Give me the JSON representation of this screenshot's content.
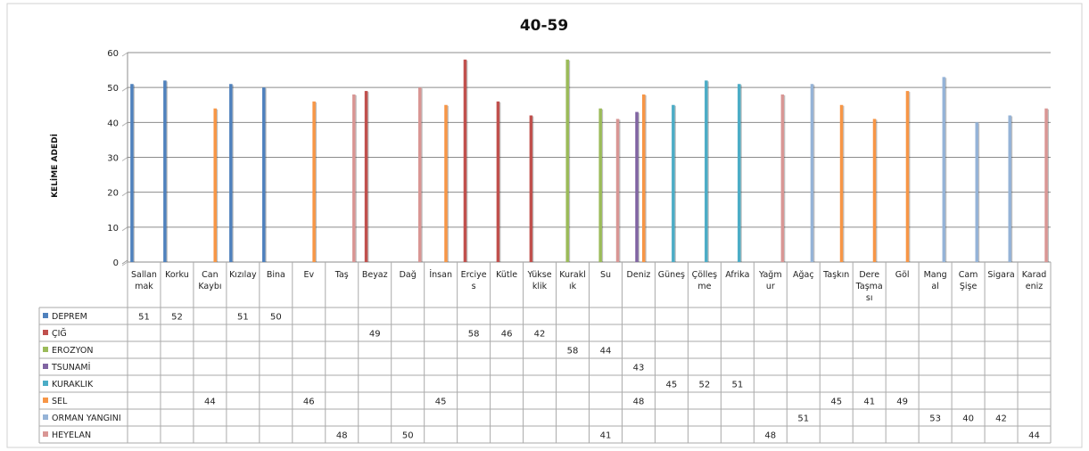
{
  "chart_data": {
    "type": "bar",
    "title": "40-59",
    "ylabel": "KELİME ADEDİ",
    "xlabel": "",
    "ylim": [
      0,
      60
    ],
    "yticks": [
      0,
      10,
      20,
      30,
      40,
      50,
      60
    ],
    "grid": true,
    "legend": "data-table",
    "categories": [
      "Sallan mak",
      "Korku",
      "Can Kaybı",
      "Kızılay",
      "Bina",
      "Ev",
      "Taş",
      "Beyaz",
      "Dağ",
      "İnsan",
      "Erciye s",
      "Kütle",
      "Yükse klik",
      "Kurakl ık",
      "Su",
      "Deniz",
      "Güneş",
      "Çölleş me",
      "Afrika",
      "Yağm ur",
      "Ağaç",
      "Taşkın",
      "Dere Taşma sı",
      "Göl",
      "Mang al",
      "Cam Şişe",
      "Sigara",
      "Karad eniz"
    ],
    "category_lines": [
      [
        "Sallan",
        "mak"
      ],
      [
        "Korku"
      ],
      [
        "Can",
        "Kaybı"
      ],
      [
        "Kızılay"
      ],
      [
        "Bina"
      ],
      [
        "Ev"
      ],
      [
        "Taş"
      ],
      [
        "Beyaz"
      ],
      [
        "Dağ"
      ],
      [
        "İnsan"
      ],
      [
        "Erciye",
        "s"
      ],
      [
        "Kütle"
      ],
      [
        "Yükse",
        "klik"
      ],
      [
        "Kurakl",
        "ık"
      ],
      [
        "Su"
      ],
      [
        "Deniz"
      ],
      [
        "Güneş"
      ],
      [
        "Çölleş",
        "me"
      ],
      [
        "Afrika"
      ],
      [
        "Yağm",
        "ur"
      ],
      [
        "Ağaç"
      ],
      [
        "Taşkın"
      ],
      [
        "Dere",
        "Taşma",
        "sı"
      ],
      [
        "Göl"
      ],
      [
        "Mang",
        "al"
      ],
      [
        "Cam",
        "Şişe"
      ],
      [
        "Sigara"
      ],
      [
        "Karad",
        "eniz"
      ]
    ],
    "series": [
      {
        "name": "DEPREM",
        "color": "#4f81bd",
        "values": [
          51,
          52,
          null,
          51,
          50,
          null,
          null,
          null,
          null,
          null,
          null,
          null,
          null,
          null,
          null,
          null,
          null,
          null,
          null,
          null,
          null,
          null,
          null,
          null,
          null,
          null,
          null,
          null
        ]
      },
      {
        "name": "ÇIĞ",
        "color": "#c0504d",
        "values": [
          null,
          null,
          null,
          null,
          null,
          null,
          null,
          49,
          null,
          null,
          58,
          46,
          42,
          null,
          null,
          null,
          null,
          null,
          null,
          null,
          null,
          null,
          null,
          null,
          null,
          null,
          null,
          null
        ]
      },
      {
        "name": "EROZYON",
        "color": "#9bbb59",
        "values": [
          null,
          null,
          null,
          null,
          null,
          null,
          null,
          null,
          null,
          null,
          null,
          null,
          null,
          58,
          44,
          null,
          null,
          null,
          null,
          null,
          null,
          null,
          null,
          null,
          null,
          null,
          null,
          null
        ]
      },
      {
        "name": "TSUNAMİ",
        "color": "#8064a2",
        "values": [
          null,
          null,
          null,
          null,
          null,
          null,
          null,
          null,
          null,
          null,
          null,
          null,
          null,
          null,
          null,
          43,
          null,
          null,
          null,
          null,
          null,
          null,
          null,
          null,
          null,
          null,
          null,
          null
        ]
      },
      {
        "name": "KURAKLIK",
        "color": "#4bacc6",
        "values": [
          null,
          null,
          null,
          null,
          null,
          null,
          null,
          null,
          null,
          null,
          null,
          null,
          null,
          null,
          null,
          null,
          45,
          52,
          51,
          null,
          null,
          null,
          null,
          null,
          null,
          null,
          null,
          null
        ]
      },
      {
        "name": "SEL",
        "color": "#f79646",
        "values": [
          null,
          null,
          44,
          null,
          null,
          46,
          null,
          null,
          null,
          45,
          null,
          null,
          null,
          null,
          null,
          48,
          null,
          null,
          null,
          null,
          null,
          45,
          41,
          49,
          null,
          null,
          null,
          null
        ]
      },
      {
        "name": "ORMAN YANGINI",
        "color": "#95b3d7",
        "values": [
          null,
          null,
          null,
          null,
          null,
          null,
          null,
          null,
          null,
          null,
          null,
          null,
          null,
          null,
          null,
          null,
          null,
          null,
          null,
          null,
          51,
          null,
          null,
          null,
          53,
          40,
          42,
          null
        ]
      },
      {
        "name": "HEYELAN",
        "color": "#d99694",
        "values": [
          null,
          null,
          null,
          null,
          null,
          null,
          48,
          null,
          50,
          null,
          null,
          null,
          null,
          null,
          41,
          null,
          null,
          null,
          null,
          48,
          null,
          null,
          null,
          null,
          null,
          null,
          null,
          44
        ]
      }
    ]
  }
}
